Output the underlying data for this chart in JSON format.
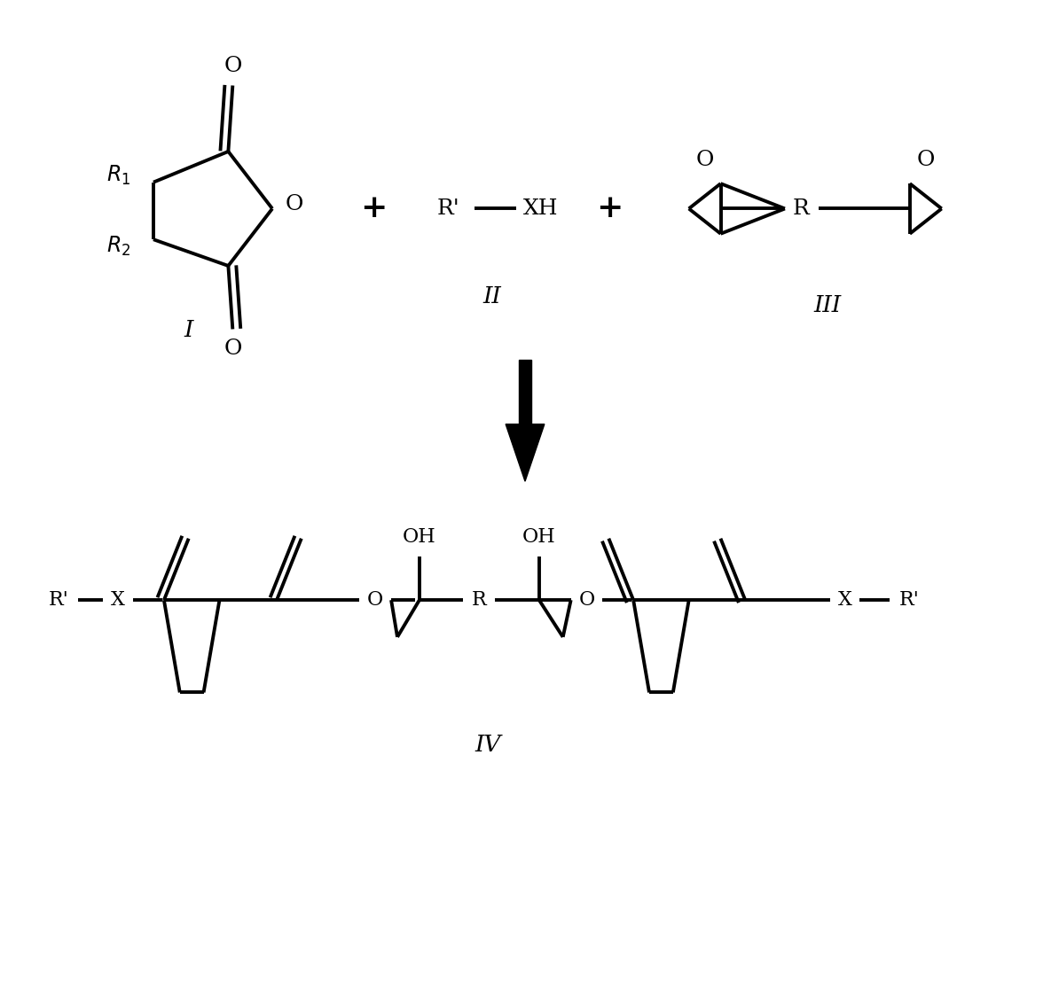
{
  "background_color": "#ffffff",
  "line_color": "#000000",
  "line_width": 2.8,
  "fig_width": 11.85,
  "fig_height": 11.33,
  "label_I": "I",
  "label_II": "II",
  "label_III": "III",
  "label_IV": "IV"
}
